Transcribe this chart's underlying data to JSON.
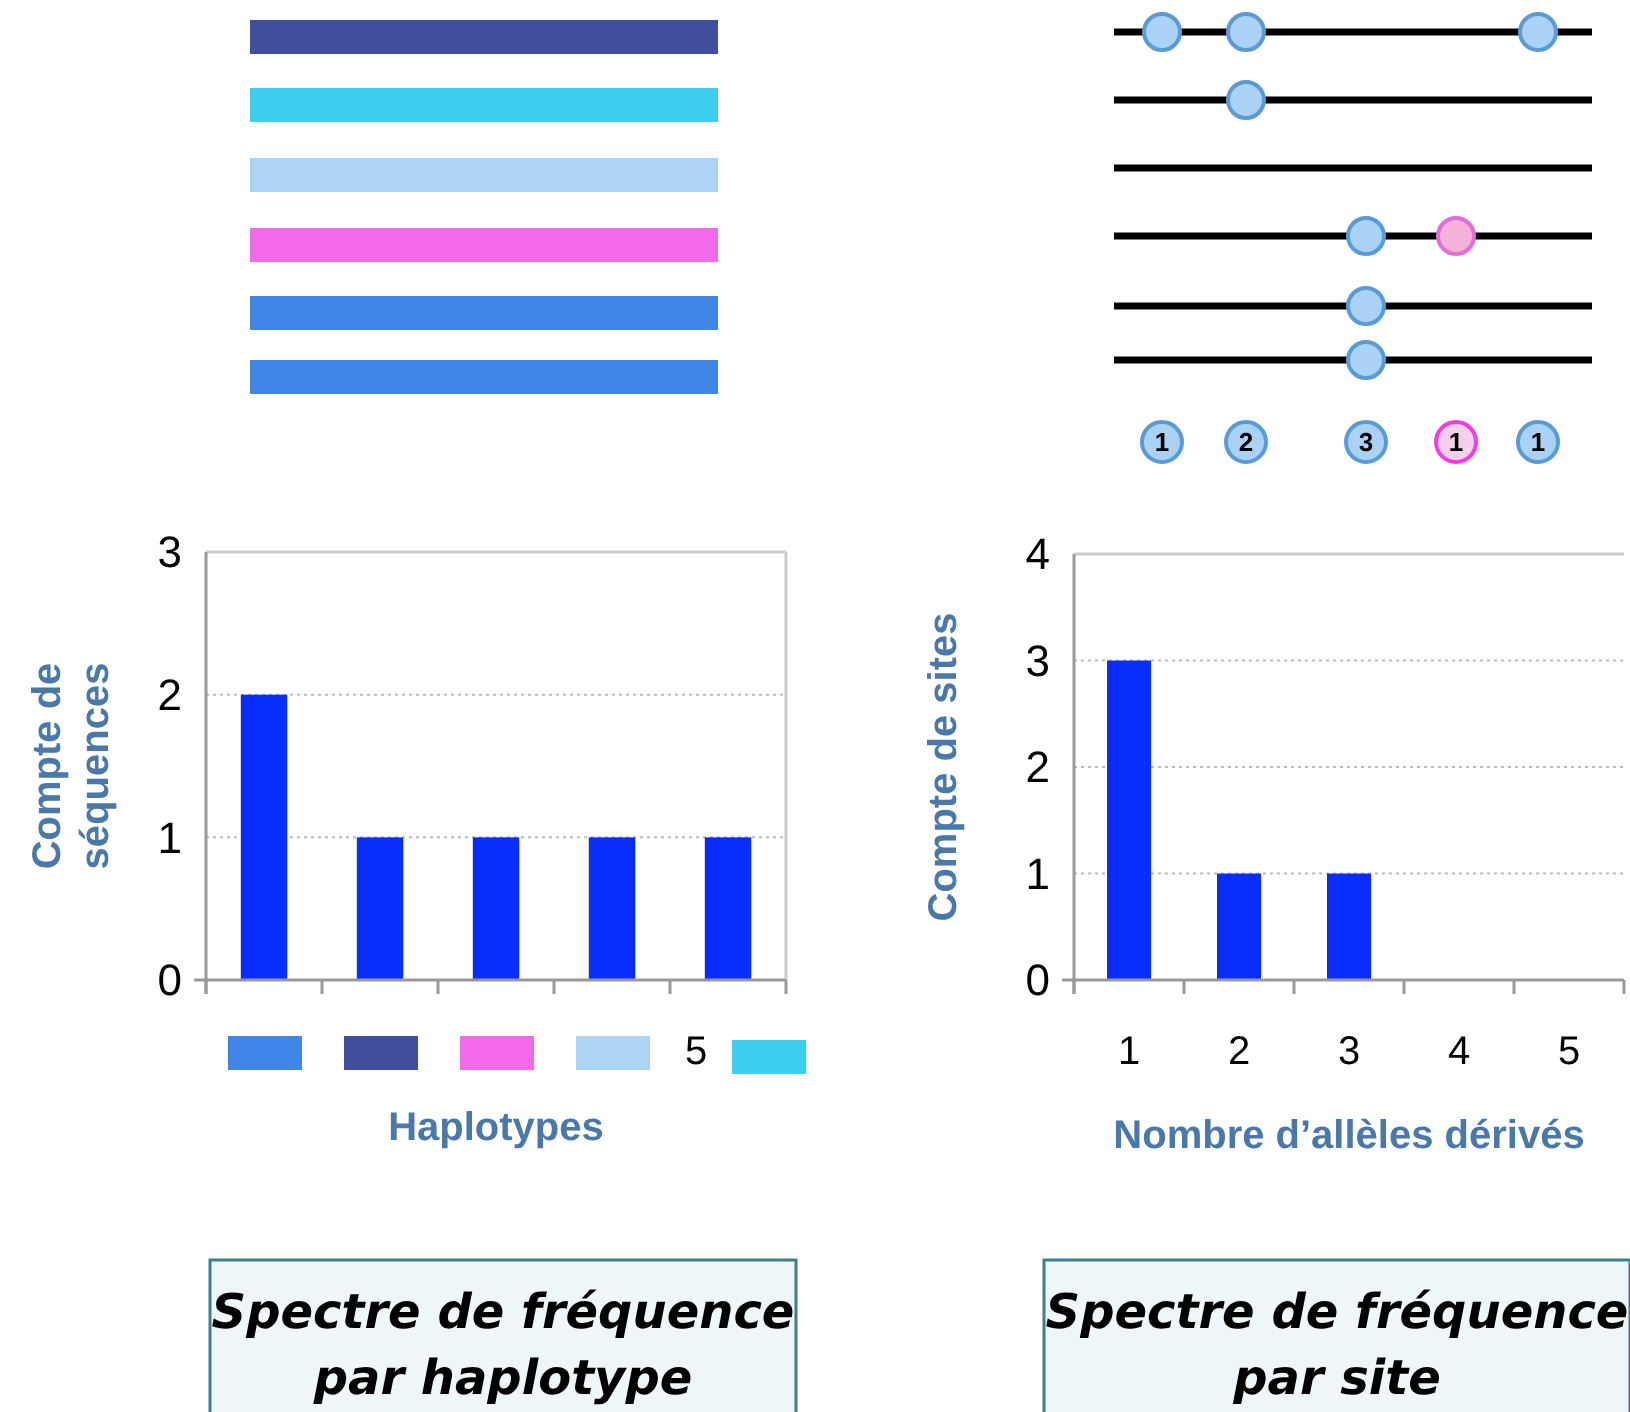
{
  "chart_data": [
    {
      "type": "bar",
      "categories": [
        null,
        null,
        null,
        null,
        "5"
      ],
      "values": [
        2,
        1,
        1,
        1,
        1
      ],
      "color": "#0a2dff",
      "ylim": [
        0,
        3
      ],
      "yticks": [
        0,
        1,
        2,
        3
      ],
      "grid": "y",
      "xlabel": "Haplotypes",
      "ylabel": "Compte de séquences",
      "annotations": [
        "Spectre de fréquence par haplotype"
      ]
    },
    {
      "type": "bar",
      "categories": [
        "1",
        "2",
        "3",
        "4",
        "5"
      ],
      "values": [
        3,
        1,
        1,
        0,
        0
      ],
      "color": "#0a2dff",
      "ylim": [
        0,
        4
      ],
      "yticks": [
        0,
        1,
        2,
        3,
        4
      ],
      "grid": "y",
      "xlabel": "Nombre d’allèles dérivés",
      "ylabel": "Compte de sites",
      "annotations": [
        "Spectre de fréquence par site",
        "1",
        "2",
        "3",
        "1",
        "1"
      ]
    }
  ]
}
